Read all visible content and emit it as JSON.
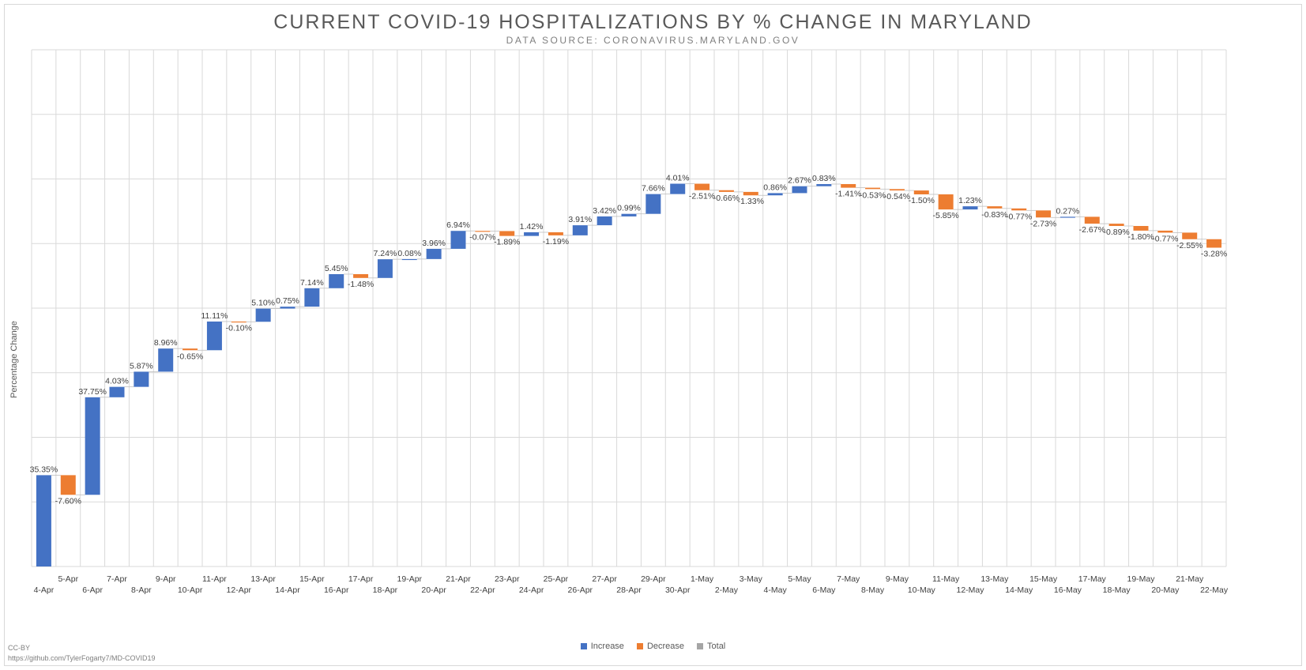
{
  "title": "CURRENT COVID-19 HOSPITALIZATIONS BY % CHANGE IN MARYLAND",
  "subtitle": "DATA SOURCE: CORONAVIRUS.MARYLAND.GOV",
  "credit_license": "CC-BY",
  "credit_url": "https://github.com/TylerFogarty7/MD-COVID19",
  "colors": {
    "increase": "#4472c4",
    "decrease": "#ed7d31",
    "total": "#a5a5a5",
    "grid": "#d9d9d9",
    "text": "#404040"
  },
  "legend": [
    {
      "label": "Increase",
      "color": "#4472c4"
    },
    {
      "label": "Decrease",
      "color": "#ed7d31"
    },
    {
      "label": "Total",
      "color": "#a5a5a5"
    }
  ],
  "chart_data": {
    "type": "waterfall",
    "title": "CURRENT COVID-19 HOSPITALIZATIONS BY % CHANGE IN MARYLAND",
    "subtitle": "DATA SOURCE: CORONAVIRUS.MARYLAND.GOV",
    "xlabel": "",
    "ylabel": "Percentage Change",
    "ylim": [
      0,
      200
    ],
    "y_tick_step": 25,
    "y_tick_labels_shown": false,
    "grid": true,
    "legend_position": "bottom",
    "categories": [
      "4-Apr",
      "5-Apr",
      "6-Apr",
      "7-Apr",
      "8-Apr",
      "9-Apr",
      "10-Apr",
      "11-Apr",
      "12-Apr",
      "13-Apr",
      "14-Apr",
      "15-Apr",
      "16-Apr",
      "17-Apr",
      "18-Apr",
      "19-Apr",
      "20-Apr",
      "21-Apr",
      "22-Apr",
      "23-Apr",
      "24-Apr",
      "25-Apr",
      "26-Apr",
      "27-Apr",
      "28-Apr",
      "29-Apr",
      "30-Apr",
      "1-May",
      "2-May",
      "3-May",
      "4-May",
      "5-May",
      "6-May",
      "7-May",
      "8-May",
      "9-May",
      "10-May",
      "11-May",
      "12-May",
      "13-May",
      "14-May",
      "15-May",
      "16-May",
      "17-May",
      "18-May",
      "19-May",
      "20-May",
      "21-May",
      "22-May"
    ],
    "values": [
      35.35,
      -7.6,
      37.75,
      4.03,
      5.87,
      8.96,
      -0.65,
      11.11,
      -0.1,
      5.1,
      0.75,
      7.14,
      5.45,
      -1.48,
      7.24,
      0.08,
      3.96,
      6.94,
      -0.07,
      -1.89,
      1.42,
      -1.19,
      3.91,
      3.42,
      0.99,
      7.66,
      4.01,
      -2.51,
      -0.66,
      -1.33,
      0.86,
      2.67,
      0.83,
      -1.41,
      -0.53,
      -0.54,
      -1.5,
      -5.85,
      1.23,
      -0.83,
      -0.77,
      -2.73,
      0.27,
      -2.67,
      -0.89,
      -1.8,
      -0.77,
      -2.55,
      -3.28
    ],
    "value_labels": [
      "35.35%",
      "-7.60%",
      "37.75%",
      "4.03%",
      "5.87%",
      "8.96%",
      "-0.65%",
      "11.11%",
      "-0.10%",
      "5.10%",
      "0.75%",
      "7.14%",
      "5.45%",
      "-1.48%",
      "7.24%",
      "0.08%",
      "3.96%",
      "6.94%",
      "-0.07%",
      "-1.89%",
      "1.42%",
      "-1.19%",
      "3.91%",
      "3.42%",
      "0.99%",
      "7.66%",
      "4.01%",
      "-2.51%",
      "-0.66%",
      "-1.33%",
      "0.86%",
      "2.67%",
      "0.83%",
      "-1.41%",
      "-0.53%",
      "-0.54%",
      "-1.50%",
      "-5.85%",
      "1.23%",
      "-0.83%",
      "-0.77%",
      "-2.73%",
      "0.27%",
      "-2.67%",
      "-0.89%",
      "-1.80%",
      "-0.77%",
      "-2.55%",
      "-3.28%"
    ],
    "series": [
      {
        "name": "Increase",
        "color": "#4472c4"
      },
      {
        "name": "Decrease",
        "color": "#ed7d31"
      },
      {
        "name": "Total",
        "color": "#a5a5a5"
      }
    ]
  }
}
